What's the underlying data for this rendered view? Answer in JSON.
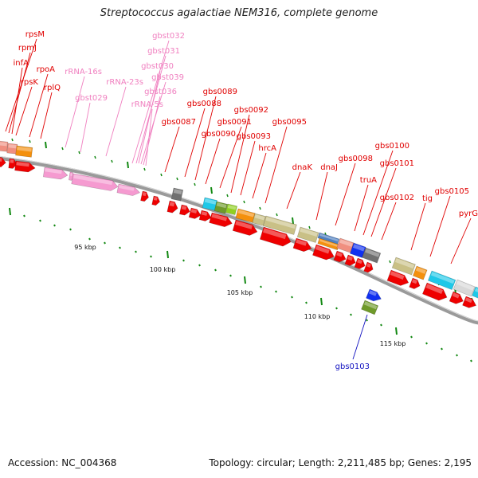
{
  "title": "Streptococcus agalactiae NEM316, complete genome",
  "footer": {
    "accession": "Accession: NC_004368",
    "summary": "Topology: circular; Length: 2,211,485 bp; Genes: 2,195"
  },
  "colors": {
    "gene_label": "#e00000",
    "rna_label": "#f080c0",
    "special_label": "#1010c0",
    "tick": "#118811",
    "backbone": "#888888"
  },
  "scale_labels": [
    "95 kbp",
    "100 kbp",
    "105 kbp",
    "110 kbp",
    "115 kbp"
  ],
  "gene_labels": [
    "rpsM",
    "rpmJ",
    "infA",
    "rpsK",
    "rpoA",
    "rplQ",
    "rRNA-16s",
    "gbst029",
    "rRNA-23s",
    "gbst032",
    "gbst031",
    "gbst030",
    "gbst039",
    "gbst036",
    "rRNA-5s",
    "gbs0087",
    "gbs0088",
    "gbs0089",
    "gbs0090",
    "gbs0091",
    "gbs0092",
    "gbs0093",
    "hrcA",
    "gbs0095",
    "dnaK",
    "dnaJ",
    "gbs0098",
    "truA",
    "gbs0100",
    "gbs0101",
    "gbs0102",
    "tig",
    "gbs0105",
    "pyrG",
    "gbs0103"
  ]
}
